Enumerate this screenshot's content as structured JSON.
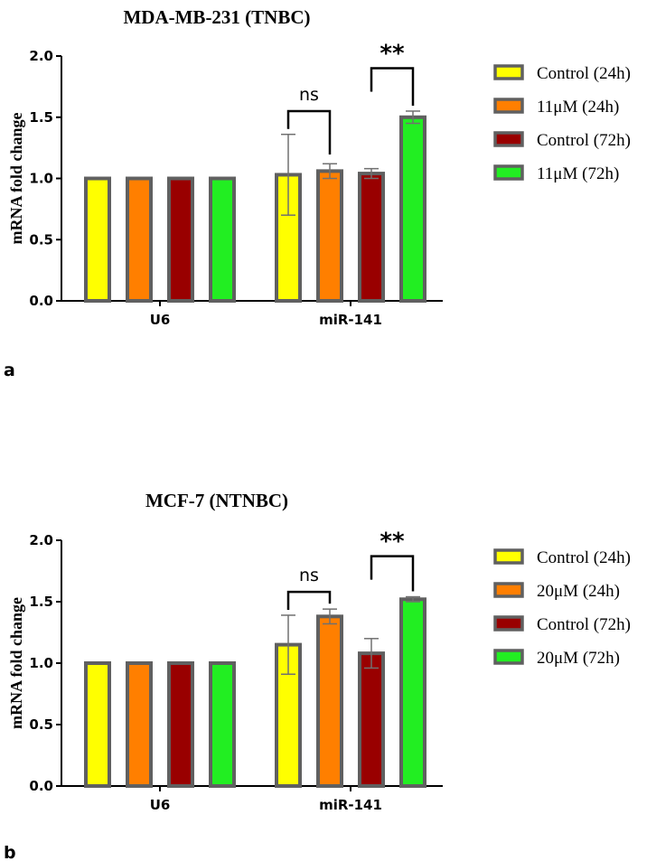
{
  "chart_data": [
    {
      "type": "bar",
      "panel_label": "a",
      "title": "MDA-MB-231 (TNBC)",
      "ylabel": "mRNA fold change",
      "xlabel": "",
      "ylim": [
        0,
        2.0
      ],
      "yticks": [
        "0.0",
        "0.5",
        "1.0",
        "1.5",
        "2.0"
      ],
      "categories": [
        "U6",
        "miR-141"
      ],
      "series": [
        {
          "name": "Control (24h)",
          "color": "#ffff00",
          "values": [
            1.0,
            1.03
          ],
          "errors": [
            0,
            0.33
          ]
        },
        {
          "name": "11μM (24h)",
          "color": "#ff7f00",
          "values": [
            1.0,
            1.06
          ],
          "errors": [
            0,
            0.06
          ]
        },
        {
          "name": "Control (72h)",
          "color": "#990000",
          "values": [
            1.0,
            1.04
          ],
          "errors": [
            0,
            0.04
          ]
        },
        {
          "name": "11μM (72h)",
          "color": "#22ee22",
          "values": [
            1.0,
            1.5
          ],
          "errors": [
            0,
            0.05
          ]
        }
      ],
      "significance": [
        {
          "label": "ns",
          "category": "miR-141",
          "from": 0,
          "to": 1,
          "height": 1.55
        },
        {
          "label": "**",
          "category": "miR-141",
          "from": 2,
          "to": 3,
          "height": 1.9
        }
      ],
      "legend_position": "right",
      "grid": false
    },
    {
      "type": "bar",
      "panel_label": "b",
      "title": "MCF-7 (NTNBC)",
      "ylabel": "mRNA fold change",
      "xlabel": "",
      "ylim": [
        0,
        2.0
      ],
      "yticks": [
        "0.0",
        "0.5",
        "1.0",
        "1.5",
        "2.0"
      ],
      "categories": [
        "U6",
        "miR-141"
      ],
      "series": [
        {
          "name": "Control (24h)",
          "color": "#ffff00",
          "values": [
            1.0,
            1.15
          ],
          "errors": [
            0,
            0.24
          ]
        },
        {
          "name": "20μM (24h)",
          "color": "#ff7f00",
          "values": [
            1.0,
            1.38
          ],
          "errors": [
            0,
            0.06
          ]
        },
        {
          "name": "Control (72h)",
          "color": "#990000",
          "values": [
            1.0,
            1.08
          ],
          "errors": [
            0,
            0.12
          ]
        },
        {
          "name": "20μM (72h)",
          "color": "#22ee22",
          "values": [
            1.0,
            1.52
          ],
          "errors": [
            0,
            0.02
          ]
        }
      ],
      "significance": [
        {
          "label": "ns",
          "category": "miR-141",
          "from": 0,
          "to": 1,
          "height": 1.58
        },
        {
          "label": "**",
          "category": "miR-141",
          "from": 2,
          "to": 3,
          "height": 1.87
        }
      ],
      "legend_position": "right",
      "grid": false
    }
  ],
  "colors": {
    "bar_outline": "#606060",
    "error_bar": "#707070",
    "axis": "#000000"
  }
}
